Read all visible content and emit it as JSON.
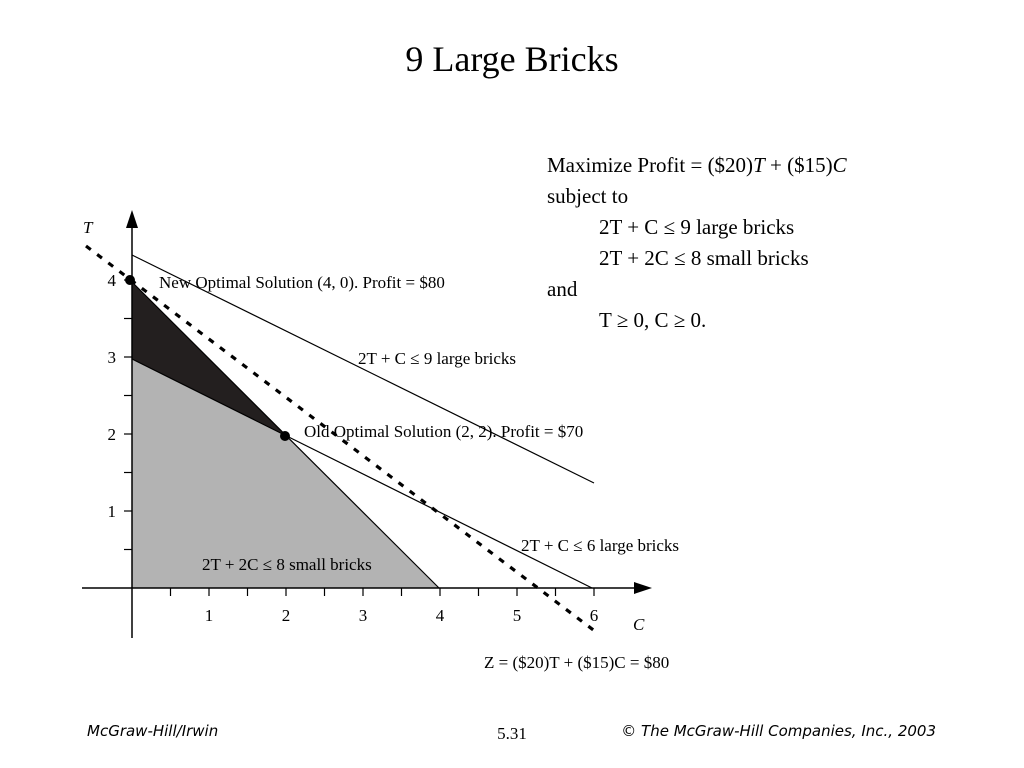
{
  "title": "9 Large Bricks",
  "model": {
    "line1_pre": "Maximize Profit = ($20)",
    "line1_var1": "T",
    "line1_mid": " + ($15)",
    "line1_var2": "C",
    "line2": "subject to",
    "c1": "2T + C ≤ 9  large bricks",
    "c2": "2T + 2C ≤ 8 small bricks",
    "line_and": "and",
    "nonneg": "T ≥ 0, C ≥ 0."
  },
  "chart_data": {
    "type": "line",
    "xlabel": "C",
    "ylabel": "T",
    "xlim": [
      0,
      6
    ],
    "ylim": [
      0,
      4
    ],
    "x_ticks": [
      "1",
      "2",
      "3",
      "4",
      "5",
      "6"
    ],
    "y_ticks": [
      "1",
      "2",
      "3",
      "4"
    ],
    "constraint_lines": [
      {
        "name": "2T + C ≤ 9 large bricks",
        "C": [
          0,
          6
        ],
        "T": [
          4.5,
          1.5
        ]
      },
      {
        "name": "2T + C ≤ 6 large bricks",
        "C": [
          0,
          6
        ],
        "T": [
          3,
          0
        ]
      },
      {
        "name": "2T + 2C ≤ 8 small bricks",
        "C": [
          2,
          4
        ],
        "T": [
          2,
          0
        ]
      }
    ],
    "profit_line": {
      "name": "Z = ($20)T + ($15)C = $80",
      "C": [
        0,
        5.33
      ],
      "T": [
        4,
        0
      ]
    },
    "points": [
      {
        "label": "New Optimal Solution (4, 0). Profit = $80",
        "C": 0,
        "T": 4
      },
      {
        "label": "Old Optimal Solution (2, 2). Profit = $70",
        "C": 2,
        "T": 2
      }
    ],
    "labels": {
      "large9": "2T + C ≤ 9 large bricks",
      "large6": "2T + C ≤ 6 large bricks",
      "small8": "2T + 2C ≤ 8 small bricks",
      "z80": "Z = ($20)T + ($15)C = $80",
      "new_opt": "New Optimal Solution (4, 0). Profit = $80",
      "old_opt": "Old Optimal Solution (2, 2). Profit = $70"
    }
  },
  "footer": {
    "left": "McGraw-Hill/Irwin",
    "center": "5.31",
    "right": "© The McGraw-Hill Companies, Inc., 2003"
  }
}
